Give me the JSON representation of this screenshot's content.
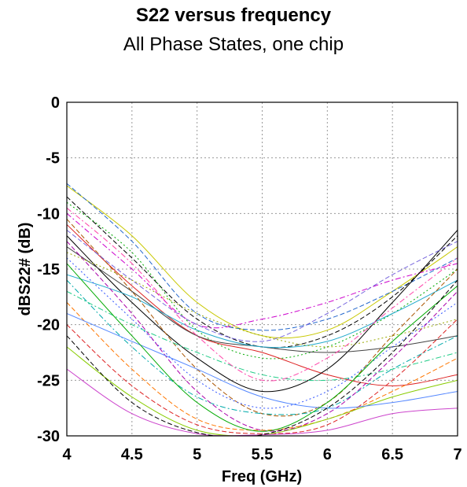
{
  "chart_data": {
    "type": "line",
    "title": "S22 versus frequency",
    "subtitle": "All Phase States, one chip",
    "xlabel": "Freq (GHz)",
    "ylabel": "dBS22# (dB)",
    "xlim": [
      4,
      7
    ],
    "ylim": [
      -30,
      0
    ],
    "xticks": [
      "4",
      "4.5",
      "5",
      "5.5",
      "6",
      "6.5",
      "7"
    ],
    "yticks": [
      "0",
      "-5",
      "-10",
      "-15",
      "-20",
      "-25",
      "-30"
    ],
    "grid": true,
    "x": [
      4,
      4.5,
      5,
      5.5,
      6,
      6.5,
      7
    ],
    "series": [
      {
        "values": [
          -7.5,
          -12.0,
          -18.0,
          -21.0,
          -20.5,
          -17.0,
          -13.0
        ],
        "color": "#c8c800",
        "dash": "solid"
      },
      {
        "values": [
          -7.3,
          -12.5,
          -19.0,
          -20.5,
          -19.5,
          -17.0,
          -14.0
        ],
        "color": "#2266cc",
        "dash": "dash"
      },
      {
        "values": [
          -8.5,
          -14.0,
          -19.5,
          -22.0,
          -21.0,
          -17.5,
          -12.0
        ],
        "color": "#000000",
        "dash": "dash"
      },
      {
        "values": [
          -9.0,
          -13.5,
          -20.5,
          -23.0,
          -22.0,
          -19.0,
          -15.0
        ],
        "color": "#00aa00",
        "dash": "dot"
      },
      {
        "values": [
          -10.0,
          -15.0,
          -20.0,
          -19.5,
          -18.0,
          -16.0,
          -14.5
        ],
        "color": "#cc00cc",
        "dash": "dashdot"
      },
      {
        "values": [
          -11.0,
          -16.5,
          -21.0,
          -22.5,
          -24.5,
          -25.5,
          -24.5
        ],
        "color": "#dd2222",
        "dash": "solid"
      },
      {
        "values": [
          -12.0,
          -18.0,
          -23.0,
          -26.0,
          -24.0,
          -18.0,
          -11.5
        ],
        "color": "#000000",
        "dash": "solid"
      },
      {
        "values": [
          -13.0,
          -17.0,
          -21.0,
          -22.0,
          -22.5,
          -22.0,
          -21.0
        ],
        "color": "#444444",
        "dash": "solid"
      },
      {
        "values": [
          -15.5,
          -17.5,
          -20.5,
          -22.0,
          -21.5,
          -19.0,
          -16.0
        ],
        "color": "#22aacc",
        "dash": "solid"
      },
      {
        "values": [
          -10.5,
          -17.0,
          -24.0,
          -28.0,
          -27.0,
          -21.0,
          -15.0
        ],
        "color": "#aa5500",
        "dash": "dash"
      },
      {
        "values": [
          -14.0,
          -19.5,
          -25.0,
          -27.5,
          -26.0,
          -22.0,
          -18.0
        ],
        "color": "#3355ff",
        "dash": "dot"
      },
      {
        "values": [
          -16.0,
          -22.0,
          -26.5,
          -28.0,
          -27.5,
          -24.0,
          -21.0
        ],
        "color": "#00aaaa",
        "dash": "dashdot"
      },
      {
        "values": [
          -12.5,
          -19.0,
          -26.0,
          -29.5,
          -28.0,
          -23.0,
          -17.0
        ],
        "color": "#aa00aa",
        "dash": "dash"
      },
      {
        "values": [
          -18.0,
          -24.0,
          -28.5,
          -29.5,
          -28.5,
          -26.0,
          -23.0
        ],
        "color": "#ff7700",
        "dash": "dash"
      },
      {
        "values": [
          -20.0,
          -25.5,
          -29.0,
          -29.8,
          -29.0,
          -25.0,
          -19.5
        ],
        "color": "#dd2222",
        "dash": "dash"
      },
      {
        "values": [
          -22.0,
          -26.5,
          -29.5,
          -29.9,
          -28.5,
          -26.5,
          -25.0
        ],
        "color": "#88cc00",
        "dash": "solid"
      },
      {
        "values": [
          -24.0,
          -28.0,
          -29.8,
          -29.9,
          -29.5,
          -28.0,
          -27.5
        ],
        "color": "#cc44cc",
        "dash": "solid"
      },
      {
        "values": [
          -11.5,
          -16.0,
          -20.0,
          -21.5,
          -19.0,
          -15.5,
          -12.5
        ],
        "color": "#7766dd",
        "dash": "dash"
      },
      {
        "values": [
          -13.5,
          -16.0,
          -19.0,
          -21.0,
          -22.0,
          -21.0,
          -19.5
        ],
        "color": "#99aa00",
        "dash": "dot"
      },
      {
        "values": [
          -17.0,
          -20.0,
          -22.5,
          -24.5,
          -25.0,
          -24.0,
          -22.5
        ],
        "color": "#22cc88",
        "dash": "dashdot"
      },
      {
        "values": [
          -19.0,
          -21.5,
          -24.0,
          -26.5,
          -27.5,
          -27.0,
          -26.0
        ],
        "color": "#5588ff",
        "dash": "solid"
      },
      {
        "values": [
          -9.5,
          -14.5,
          -21.0,
          -25.0,
          -23.0,
          -18.5,
          -14.0
        ],
        "color": "#ff44aa",
        "dash": "dashdot"
      },
      {
        "values": [
          -14.5,
          -21.0,
          -27.0,
          -29.6,
          -27.0,
          -21.5,
          -16.5
        ],
        "color": "#00aa00",
        "dash": "solid"
      },
      {
        "values": [
          -21.0,
          -27.0,
          -29.7,
          -29.9,
          -27.5,
          -22.5,
          -16.0
        ],
        "color": "#000000",
        "dash": "dash"
      }
    ]
  }
}
